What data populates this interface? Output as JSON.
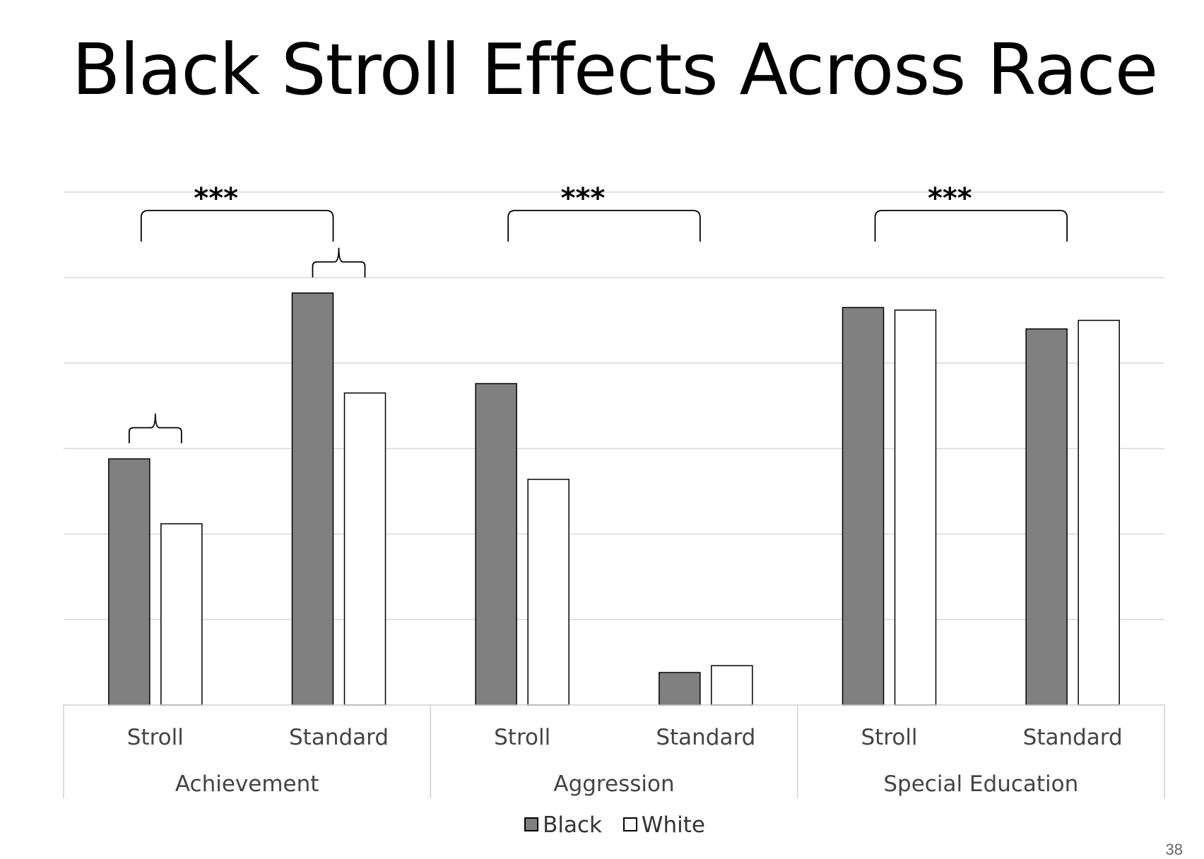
{
  "chart_data": {
    "type": "bar",
    "title": "Black Stroll Effects Across Race",
    "xlabel": "",
    "ylabel": "",
    "ylim": [
      0,
      6
    ],
    "grid": true,
    "legend_placement": "bottom",
    "groups": [
      {
        "label": "Achievement",
        "categories": [
          "Stroll",
          "Standard"
        ]
      },
      {
        "label": "Aggression",
        "categories": [
          "Stroll",
          "Standard"
        ]
      },
      {
        "label": "Special Education",
        "categories": [
          "Stroll",
          "Standard"
        ]
      }
    ],
    "categories": [
      "Stroll",
      "Standard",
      "Stroll",
      "Standard",
      "Stroll",
      "Standard"
    ],
    "series": [
      {
        "name": "Black",
        "color": "#808080",
        "values": [
          2.88,
          4.82,
          3.76,
          0.38,
          4.65,
          4.4
        ]
      },
      {
        "name": "White",
        "color": "#ffffff",
        "values": [
          2.12,
          3.65,
          2.64,
          0.46,
          4.62,
          4.5
        ]
      }
    ],
    "annotations": [
      {
        "type": "bracket",
        "group": 0,
        "label": "***"
      },
      {
        "type": "bracket",
        "group": 1,
        "label": "***"
      },
      {
        "type": "bracket",
        "group": 2,
        "label": "***"
      },
      {
        "type": "pair-brace",
        "category": 0,
        "label": ""
      },
      {
        "type": "pair-brace",
        "category": 1,
        "label": ""
      }
    ]
  },
  "page_number": "38"
}
